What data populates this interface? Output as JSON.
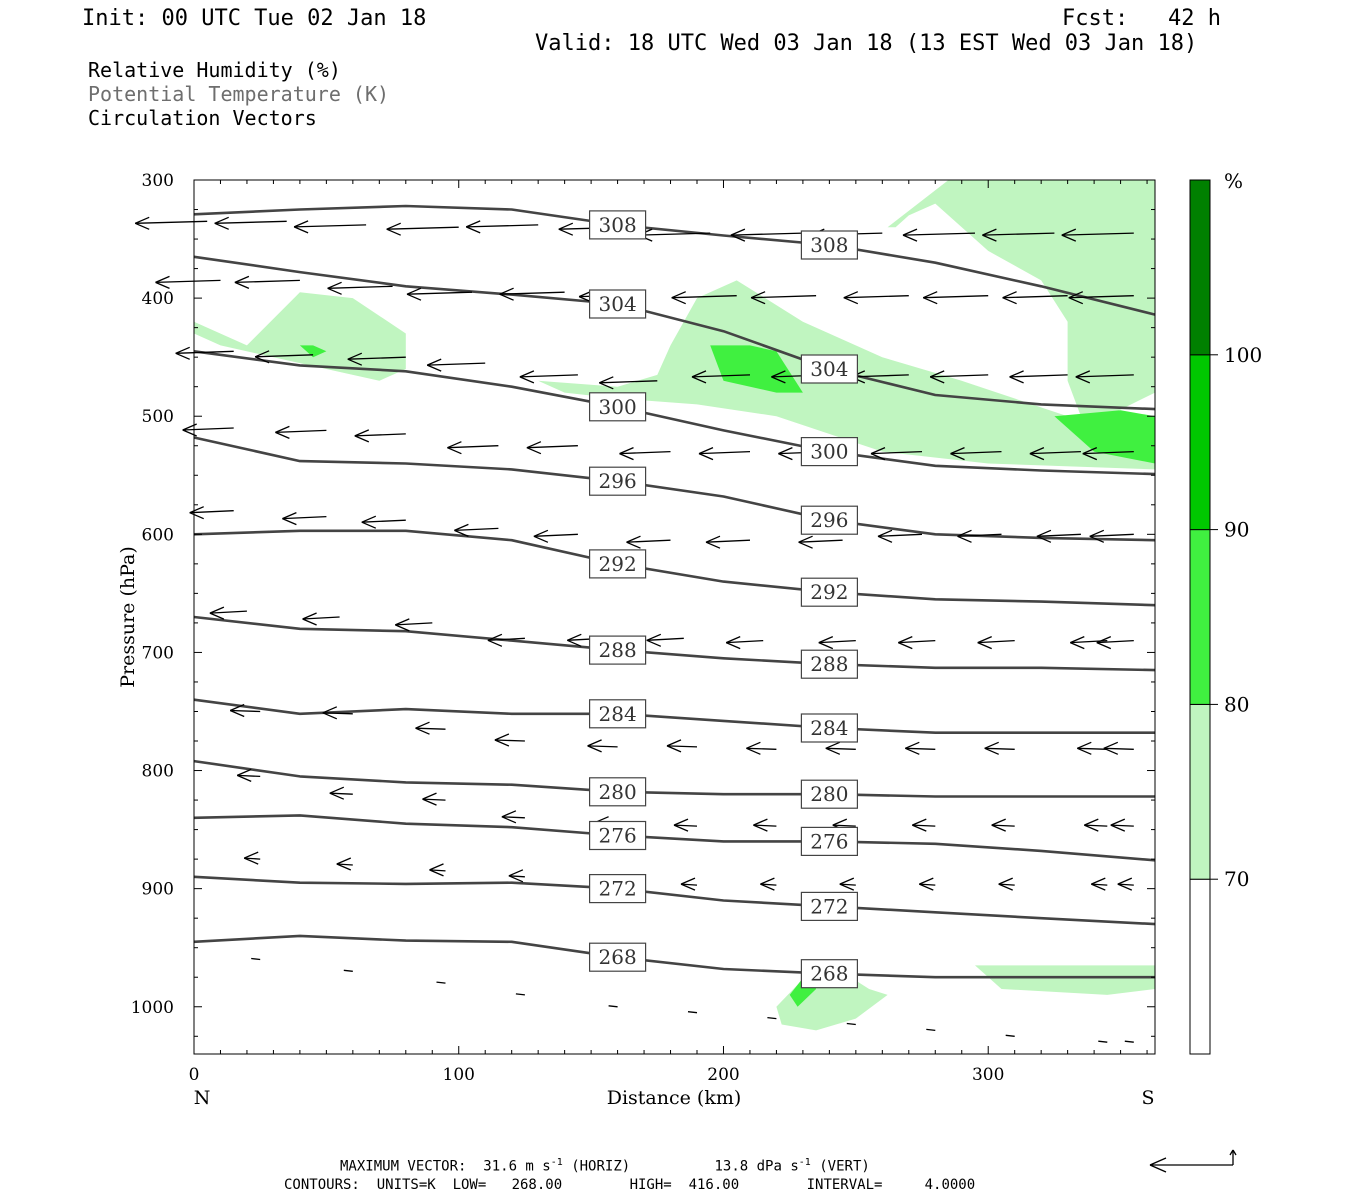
{
  "header": {
    "init": "Init: 00 UTC Tue 02 Jan 18",
    "fcst": "Fcst:   42 h",
    "valid": "Valid: 18 UTC Wed 03 Jan 18 (13 EST Wed 03 Jan 18)",
    "field1": "Relative Humidity (%)",
    "field2": "Potential Temperature (K)",
    "field3": "Circulation Vectors"
  },
  "footer": {
    "max_vector_prefix": "MAXIMUM VECTOR:  31.6 m s",
    "max_vector_sup1": "-1",
    "max_vector_mid": " (HORIZ)          13.8 dPa s",
    "max_vector_sup2": "-1",
    "max_vector_suffix": " (VERT)",
    "contours": "CONTOURS:  UNITS=K  LOW=   268.00        HIGH=  416.00        INTERVAL=     4.0000"
  },
  "colors": {
    "rh_70": "#c0f5c0",
    "rh_80": "#40f040",
    "rh_90": "#00c800",
    "rh_100": "#008000",
    "theta_line": "#444444"
  },
  "chart_data": {
    "type": "cross-section",
    "title": "",
    "xlabel": "Distance (km)",
    "ylabel": "Pressure (hPa)",
    "x_end_labels": [
      "N",
      "S"
    ],
    "xlim": [
      0,
      363
    ],
    "ylim": [
      300,
      1040
    ],
    "xticks": [
      0,
      100,
      200,
      300
    ],
    "yticks": [
      300,
      400,
      500,
      600,
      700,
      800,
      900,
      1000
    ],
    "colorbar": {
      "unit": "%",
      "levels": [
        70,
        80,
        90,
        100
      ]
    },
    "theta_contours": [
      {
        "value": 308,
        "x": [
          0,
          40,
          80,
          120,
          160,
          200,
          240,
          280,
          320,
          363
        ],
        "p": [
          329,
          325,
          322,
          325,
          338,
          347,
          355,
          370,
          390,
          414
        ]
      },
      {
        "value": 304,
        "x": [
          0,
          40,
          80,
          120,
          160,
          200,
          240,
          280,
          320,
          363
        ],
        "p": [
          365,
          378,
          390,
          397,
          405,
          428,
          460,
          482,
          490,
          494
        ]
      },
      {
        "value": 300,
        "x": [
          0,
          40,
          80,
          120,
          160,
          200,
          240,
          280,
          320,
          363
        ],
        "p": [
          445,
          457,
          462,
          475,
          492,
          512,
          530,
          542,
          546,
          549
        ]
      },
      {
        "value": 296,
        "x": [
          0,
          40,
          80,
          120,
          160,
          200,
          240,
          280,
          320,
          363
        ],
        "p": [
          518,
          538,
          540,
          545,
          555,
          568,
          588,
          600,
          603,
          605
        ]
      },
      {
        "value": 292,
        "x": [
          0,
          40,
          80,
          120,
          160,
          200,
          240,
          280,
          320,
          363
        ],
        "p": [
          600,
          597,
          597,
          605,
          625,
          640,
          649,
          655,
          657,
          660
        ]
      },
      {
        "value": 288,
        "x": [
          0,
          40,
          80,
          120,
          160,
          200,
          240,
          280,
          320,
          363
        ],
        "p": [
          670,
          680,
          682,
          690,
          698,
          705,
          710,
          713,
          713,
          715
        ]
      },
      {
        "value": 284,
        "x": [
          0,
          40,
          80,
          120,
          160,
          200,
          240,
          280,
          320,
          363
        ],
        "p": [
          740,
          752,
          748,
          752,
          752,
          758,
          764,
          768,
          768,
          768
        ]
      },
      {
        "value": 280,
        "x": [
          0,
          40,
          80,
          120,
          160,
          200,
          240,
          280,
          320,
          363
        ],
        "p": [
          792,
          805,
          810,
          812,
          818,
          820,
          820,
          822,
          822,
          822
        ]
      },
      {
        "value": 276,
        "x": [
          0,
          40,
          80,
          120,
          160,
          200,
          240,
          280,
          320,
          363
        ],
        "p": [
          840,
          838,
          845,
          848,
          855,
          860,
          860,
          862,
          868,
          876
        ]
      },
      {
        "value": 272,
        "x": [
          0,
          40,
          80,
          120,
          160,
          200,
          240,
          280,
          320,
          363
        ],
        "p": [
          890,
          895,
          896,
          895,
          900,
          910,
          915,
          920,
          925,
          930
        ]
      },
      {
        "value": 268,
        "x": [
          0,
          40,
          80,
          120,
          160,
          200,
          240,
          280,
          320,
          363
        ],
        "p": [
          945,
          940,
          944,
          945,
          958,
          968,
          972,
          975,
          975,
          975
        ]
      }
    ],
    "rh_regions": [
      {
        "level": 70,
        "x": [
          285,
          363,
          363,
          345,
          335,
          330,
          330,
          320,
          300,
          280,
          270,
          265,
          262,
          285
        ],
        "p": [
          300,
          300,
          480,
          500,
          500,
          470,
          420,
          385,
          360,
          320,
          330,
          340,
          340,
          300
        ]
      },
      {
        "level": 70,
        "x": [
          0,
          20,
          40,
          60,
          80,
          80,
          70,
          50,
          30,
          10,
          0
        ],
        "p": [
          420,
          440,
          395,
          400,
          430,
          460,
          470,
          460,
          450,
          440,
          430
        ]
      },
      {
        "level": 70,
        "x": [
          130,
          160,
          175,
          180,
          190,
          205,
          230,
          260,
          290,
          330,
          363,
          363,
          300,
          260,
          220,
          190,
          160,
          140,
          130
        ],
        "p": [
          470,
          475,
          465,
          440,
          400,
          385,
          420,
          450,
          470,
          500,
          500,
          545,
          540,
          530,
          500,
          490,
          485,
          480,
          470
        ]
      },
      {
        "level": 80,
        "x": [
          195,
          210,
          220,
          230,
          220,
          200,
          195
        ],
        "p": [
          440,
          440,
          445,
          480,
          480,
          470,
          440
        ]
      },
      {
        "level": 80,
        "x": [
          325,
          350,
          363,
          363,
          340,
          325
        ],
        "p": [
          500,
          495,
          500,
          540,
          530,
          500
        ]
      },
      {
        "level": 80,
        "x": [
          40,
          45,
          50,
          45,
          40
        ],
        "p": [
          440,
          440,
          445,
          450,
          440
        ]
      },
      {
        "level": 70,
        "x": [
          220,
          235,
          240,
          245,
          248,
          255,
          262,
          250,
          235,
          222,
          220
        ],
        "p": [
          1000,
          965,
          970,
          968,
          975,
          985,
          990,
          1010,
          1020,
          1015,
          1000
        ]
      },
      {
        "level": 80,
        "x": [
          225,
          232,
          235,
          228,
          225
        ],
        "p": [
          990,
          970,
          985,
          1000,
          990
        ]
      },
      {
        "level": 70,
        "x": [
          295,
          363,
          363,
          345,
          305,
          295
        ],
        "p": [
          965,
          965,
          985,
          990,
          985,
          965
        ]
      }
    ],
    "wind_vectors": [
      {
        "x": [
          5,
          35,
          65,
          100,
          130,
          165,
          195,
          230,
          260,
          295,
          325,
          355
        ],
        "p": [
          335,
          335,
          338,
          340,
          338,
          340,
          345,
          345,
          345,
          345,
          345,
          345
        ]
      },
      {
        "x": [
          10,
          40,
          75,
          105,
          140,
          170,
          205,
          235,
          270,
          300,
          330,
          355
        ],
        "p": [
          385,
          385,
          390,
          395,
          395,
          397,
          398,
          398,
          398,
          398,
          398,
          398
        ]
      },
      {
        "x": [
          15,
          45,
          80,
          110,
          145,
          175,
          210,
          240,
          270,
          300,
          330,
          355
        ],
        "p": [
          445,
          448,
          450,
          455,
          465,
          470,
          465,
          465,
          465,
          465,
          465,
          465
        ]
      },
      {
        "x": [
          15,
          50,
          80,
          115,
          145,
          180,
          210,
          240,
          275,
          305,
          335,
          355
        ],
        "p": [
          510,
          512,
          515,
          525,
          525,
          530,
          530,
          530,
          530,
          530,
          530,
          530
        ]
      },
      {
        "x": [
          15,
          50,
          80,
          115,
          145,
          180,
          210,
          245,
          275,
          305,
          335,
          355
        ],
        "p": [
          580,
          585,
          588,
          595,
          600,
          605,
          605,
          605,
          600,
          600,
          600,
          600
        ]
      },
      {
        "x": [
          20,
          55,
          90,
          125,
          155,
          185,
          215,
          250,
          280,
          310,
          345,
          355
        ],
        "p": [
          665,
          670,
          675,
          688,
          688,
          688,
          690,
          690,
          690,
          690,
          690,
          690
        ]
      },
      {
        "x": [
          25,
          60,
          95,
          125,
          160,
          190,
          220,
          250,
          280,
          310,
          345,
          355
        ],
        "p": [
          750,
          752,
          765,
          775,
          780,
          780,
          782,
          782,
          782,
          782,
          782,
          782
        ]
      },
      {
        "x": [
          25,
          60,
          95,
          125,
          160,
          190,
          220,
          250,
          280,
          310,
          345,
          355
        ],
        "p": [
          805,
          820,
          825,
          840,
          845,
          847,
          847,
          847,
          847,
          847,
          847,
          847
        ]
      },
      {
        "x": [
          25,
          60,
          95,
          125,
          160,
          190,
          220,
          250,
          280,
          310,
          345,
          355
        ],
        "p": [
          875,
          880,
          885,
          890,
          895,
          897,
          897,
          897,
          897,
          897,
          897,
          897
        ]
      },
      {
        "x": [
          25,
          60,
          95,
          125,
          160,
          190,
          220,
          250,
          280,
          310,
          345,
          355
        ],
        "p": [
          960,
          970,
          980,
          990,
          1000,
          1005,
          1010,
          1015,
          1020,
          1025,
          1030,
          1030
        ]
      }
    ]
  }
}
